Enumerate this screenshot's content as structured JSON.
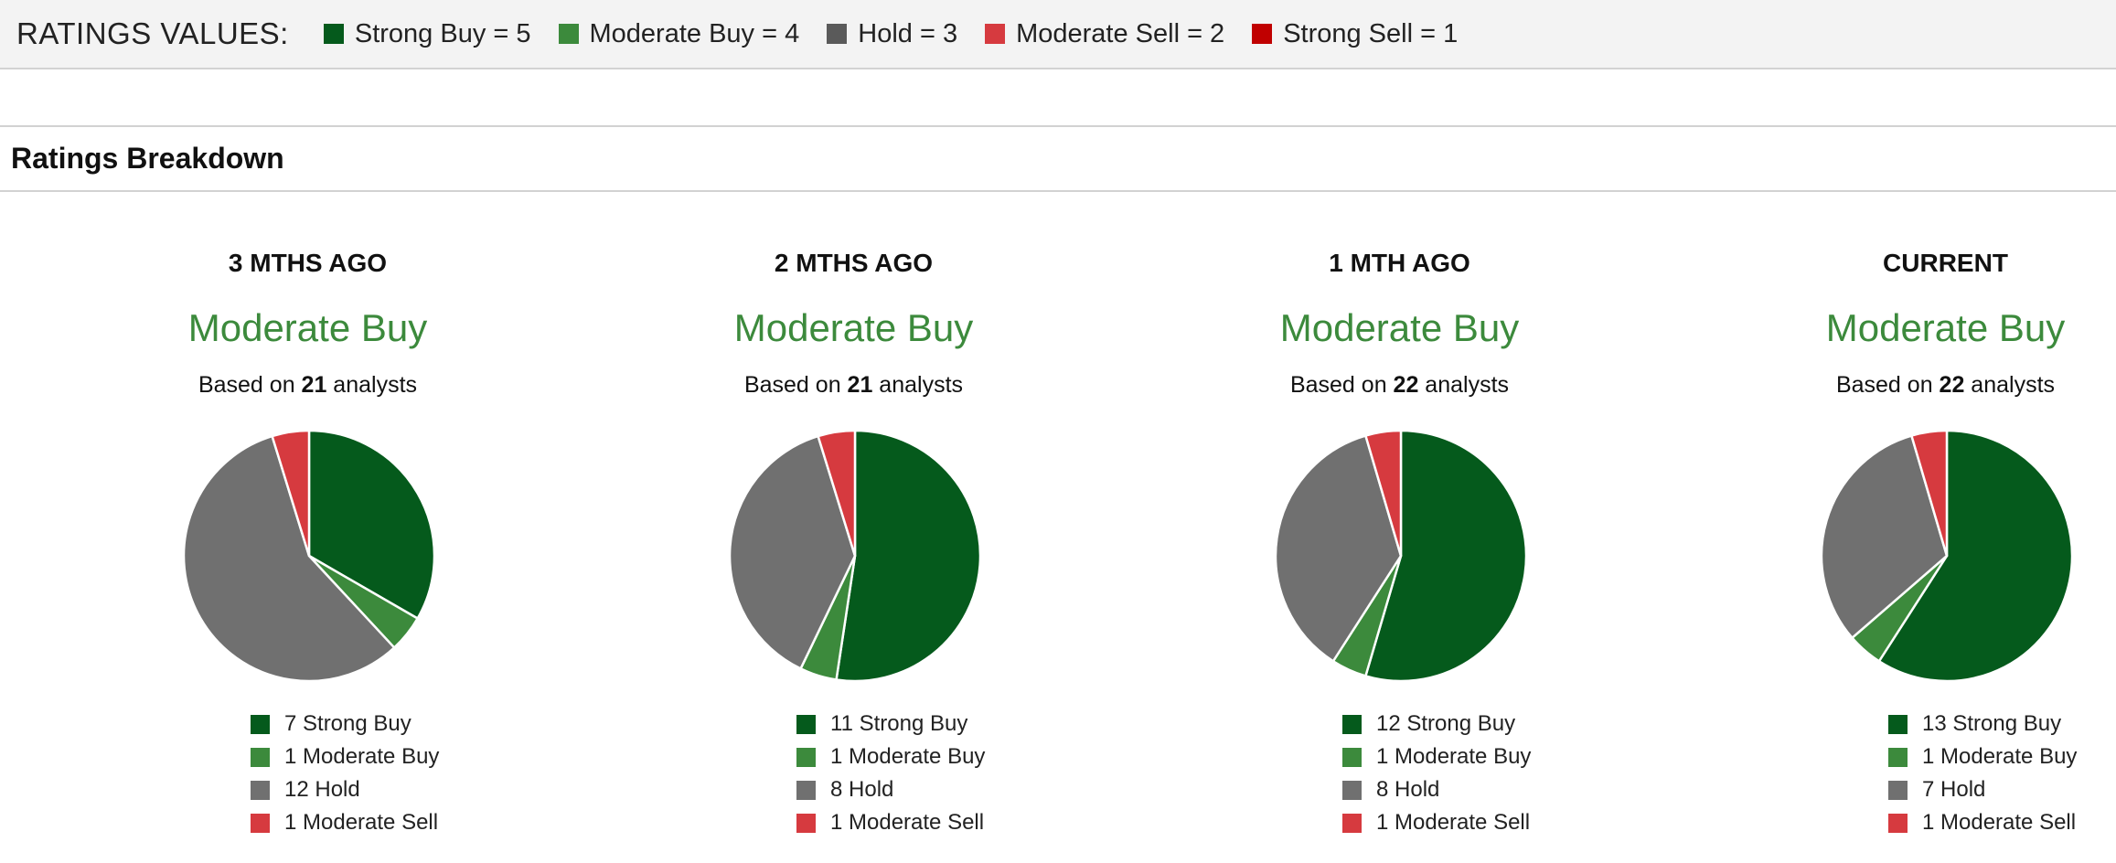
{
  "ratings_values": {
    "title": "RATINGS VALUES:",
    "items": [
      {
        "label": "Strong Buy = 5",
        "color": "#055a1c"
      },
      {
        "label": "Moderate Buy = 4",
        "color": "#3c8a3c"
      },
      {
        "label": "Hold = 3",
        "color": "#5a5a5a"
      },
      {
        "label": "Moderate Sell = 2",
        "color": "#d63a3f"
      },
      {
        "label": "Strong Sell = 1",
        "color": "#c00000"
      }
    ]
  },
  "section": {
    "title": "Ratings Breakdown"
  },
  "chart_data": [
    {
      "type": "pie",
      "title": "3 MTHS AGO",
      "consensus": "Moderate Buy",
      "based_prefix": "Based on ",
      "analysts": "21",
      "based_suffix": " analysts",
      "slices": [
        {
          "label": "Strong Buy",
          "value": 7,
          "text": "7 Strong Buy",
          "color": "#055a1c"
        },
        {
          "label": "Moderate Buy",
          "value": 1,
          "text": "1 Moderate Buy",
          "color": "#3c8a3c"
        },
        {
          "label": "Hold",
          "value": 12,
          "text": "12 Hold",
          "color": "#707070"
        },
        {
          "label": "Moderate Sell",
          "value": 1,
          "text": "1 Moderate Sell",
          "color": "#d63a3f"
        }
      ]
    },
    {
      "type": "pie",
      "title": "2 MTHS AGO",
      "consensus": "Moderate Buy",
      "based_prefix": "Based on ",
      "analysts": "21",
      "based_suffix": " analysts",
      "slices": [
        {
          "label": "Strong Buy",
          "value": 11,
          "text": "11 Strong Buy",
          "color": "#055a1c"
        },
        {
          "label": "Moderate Buy",
          "value": 1,
          "text": "1 Moderate Buy",
          "color": "#3c8a3c"
        },
        {
          "label": "Hold",
          "value": 8,
          "text": "8 Hold",
          "color": "#707070"
        },
        {
          "label": "Moderate Sell",
          "value": 1,
          "text": "1 Moderate Sell",
          "color": "#d63a3f"
        }
      ]
    },
    {
      "type": "pie",
      "title": "1 MTH AGO",
      "consensus": "Moderate Buy",
      "based_prefix": "Based on ",
      "analysts": "22",
      "based_suffix": " analysts",
      "slices": [
        {
          "label": "Strong Buy",
          "value": 12,
          "text": "12 Strong Buy",
          "color": "#055a1c"
        },
        {
          "label": "Moderate Buy",
          "value": 1,
          "text": "1 Moderate Buy",
          "color": "#3c8a3c"
        },
        {
          "label": "Hold",
          "value": 8,
          "text": "8 Hold",
          "color": "#707070"
        },
        {
          "label": "Moderate Sell",
          "value": 1,
          "text": "1 Moderate Sell",
          "color": "#d63a3f"
        }
      ]
    },
    {
      "type": "pie",
      "title": "CURRENT",
      "consensus": "Moderate Buy",
      "based_prefix": "Based on ",
      "analysts": "22",
      "based_suffix": " analysts",
      "slices": [
        {
          "label": "Strong Buy",
          "value": 13,
          "text": "13 Strong Buy",
          "color": "#055a1c"
        },
        {
          "label": "Moderate Buy",
          "value": 1,
          "text": "1 Moderate Buy",
          "color": "#3c8a3c"
        },
        {
          "label": "Hold",
          "value": 7,
          "text": "7 Hold",
          "color": "#707070"
        },
        {
          "label": "Moderate Sell",
          "value": 1,
          "text": "1 Moderate Sell",
          "color": "#d63a3f"
        }
      ]
    }
  ]
}
